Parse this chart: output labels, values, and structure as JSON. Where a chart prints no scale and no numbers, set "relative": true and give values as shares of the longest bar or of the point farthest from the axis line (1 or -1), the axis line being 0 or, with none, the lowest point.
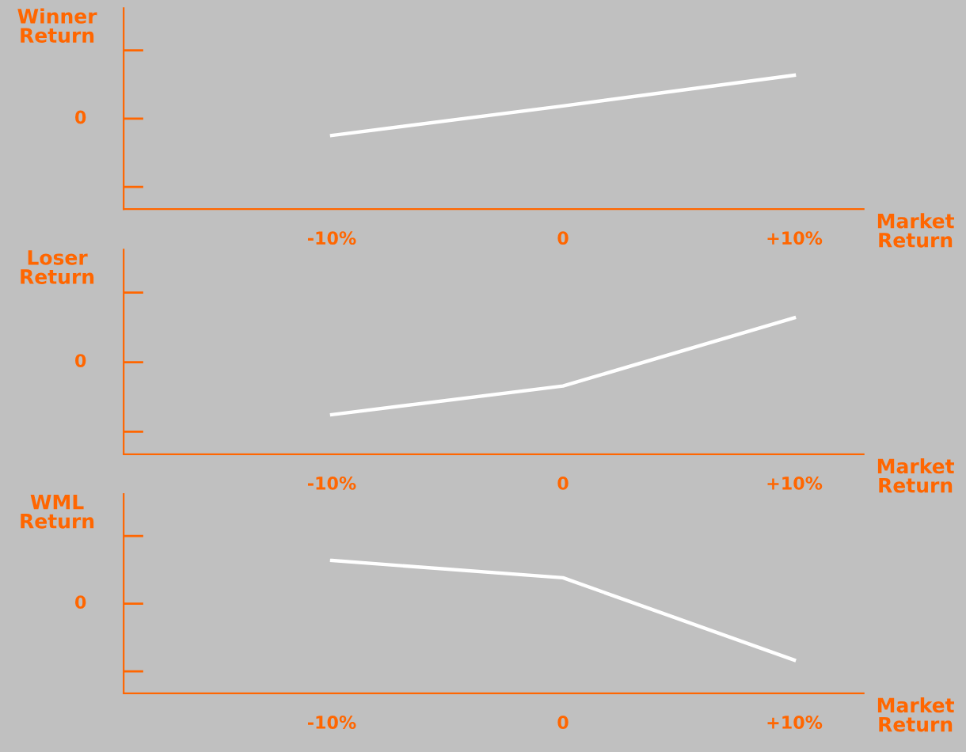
{
  "chart_data": [
    {
      "type": "line",
      "ylabel": "Winner\nReturn",
      "xlabel": "Market\nReturn",
      "categories": [
        "-10%",
        "0",
        "+10%"
      ],
      "relative": true,
      "series": [
        {
          "color": "#ffffff",
          "values": [
            0.55,
            0.77,
            1
          ]
        }
      ],
      "annotations": [
        "0"
      ],
      "grid": false,
      "legend": false
    },
    {
      "type": "line",
      "ylabel": "Loser\nReturn",
      "xlabel": "Market\nReturn",
      "categories": [
        "-10%",
        "0",
        "+10%"
      ],
      "relative": true,
      "series": [
        {
          "color": "#ffffff",
          "values": [
            0.29,
            0.5,
            1
          ]
        }
      ],
      "annotations": [
        "0"
      ],
      "grid": false,
      "legend": false
    },
    {
      "type": "line",
      "ylabel": "WML\nReturn",
      "xlabel": "Market\nReturn",
      "categories": [
        "-10%",
        "0",
        "+10%"
      ],
      "relative": true,
      "series": [
        {
          "color": "#ffffff",
          "values": [
            1,
            0.87,
            0.25
          ]
        }
      ],
      "annotations": [
        "0"
      ],
      "grid": false,
      "legend": false
    }
  ]
}
